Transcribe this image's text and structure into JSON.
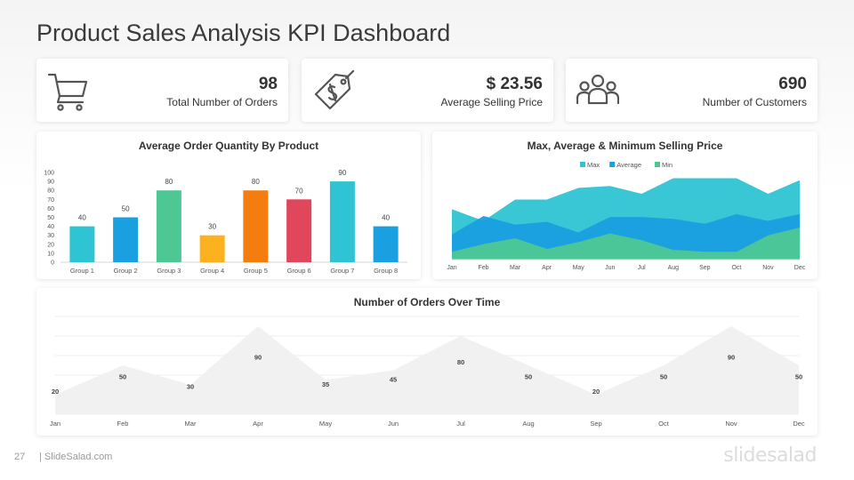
{
  "slide": {
    "title": "Product Sales Analysis KPI Dashboard",
    "page_number": "27",
    "footer_site": "| SlideSalad.com",
    "brand": "slidesalad"
  },
  "kpis": [
    {
      "value": "98",
      "label": "Total Number of Orders",
      "icon": "shopping-cart-icon"
    },
    {
      "value": "$ 23.56",
      "label": "Average Selling Price",
      "icon": "price-tag-icon"
    },
    {
      "value": "690",
      "label": "Number of Customers",
      "icon": "customers-group-icon"
    }
  ],
  "chart_data": [
    {
      "type": "bar",
      "title": "Average Order Quantity By Product",
      "categories": [
        "Group 1",
        "Group 2",
        "Group 3",
        "Group 4",
        "Group 5",
        "Group 6",
        "Group 7",
        "Group 8"
      ],
      "values": [
        40,
        50,
        80,
        30,
        80,
        70,
        90,
        40
      ],
      "colors": [
        "#2ec4d3",
        "#1a9fe0",
        "#4dc894",
        "#fbb21e",
        "#f57c0e",
        "#e0475b",
        "#2ec4d3",
        "#1a9fe0"
      ],
      "ylim": [
        0,
        100
      ],
      "yticks": [
        0,
        10,
        20,
        30,
        40,
        50,
        60,
        70,
        80,
        90,
        100
      ],
      "xlabel": "",
      "ylabel": ""
    },
    {
      "type": "area",
      "title": "Max, Average & Minimum  Selling Price",
      "categories": [
        "Jan",
        "Feb",
        "Mar",
        "Apr",
        "May",
        "Jun",
        "Jul",
        "Aug",
        "Sep",
        "Oct",
        "Nov",
        "Dec"
      ],
      "series": [
        {
          "name": "Max",
          "color": "#2ec4d3",
          "values": [
            52,
            40,
            62,
            62,
            74,
            76,
            68,
            84,
            84,
            84,
            68,
            82
          ]
        },
        {
          "name": "Average",
          "color": "#1a9fe0",
          "values": [
            26,
            45,
            36,
            39,
            28,
            44,
            44,
            42,
            37,
            47,
            40,
            47
          ]
        },
        {
          "name": "Min",
          "color": "#4dc894",
          "values": [
            8,
            16,
            22,
            11,
            18,
            27,
            20,
            10,
            8,
            8,
            25,
            33
          ]
        }
      ],
      "legend": "top",
      "ylim": [
        0,
        90
      ],
      "xlabel": "",
      "ylabel": ""
    },
    {
      "type": "area",
      "title": "Number of Orders Over Time",
      "categories": [
        "Jan",
        "Feb",
        "Mar",
        "Apr",
        "May",
        "Jun",
        "Jul",
        "Aug",
        "Sep",
        "Oct",
        "Nov",
        "Dec"
      ],
      "values": [
        20,
        50,
        30,
        90,
        35,
        45,
        80,
        50,
        20,
        50,
        90,
        50
      ],
      "labels": [
        "20",
        "50",
        "30",
        "90",
        "35",
        "45",
        "80",
        "50",
        "20",
        "50",
        "90",
        "50"
      ],
      "fill_color": "#f1f1f1",
      "ylim": [
        0,
        100
      ],
      "grid": true,
      "xlabel": "",
      "ylabel": ""
    }
  ]
}
